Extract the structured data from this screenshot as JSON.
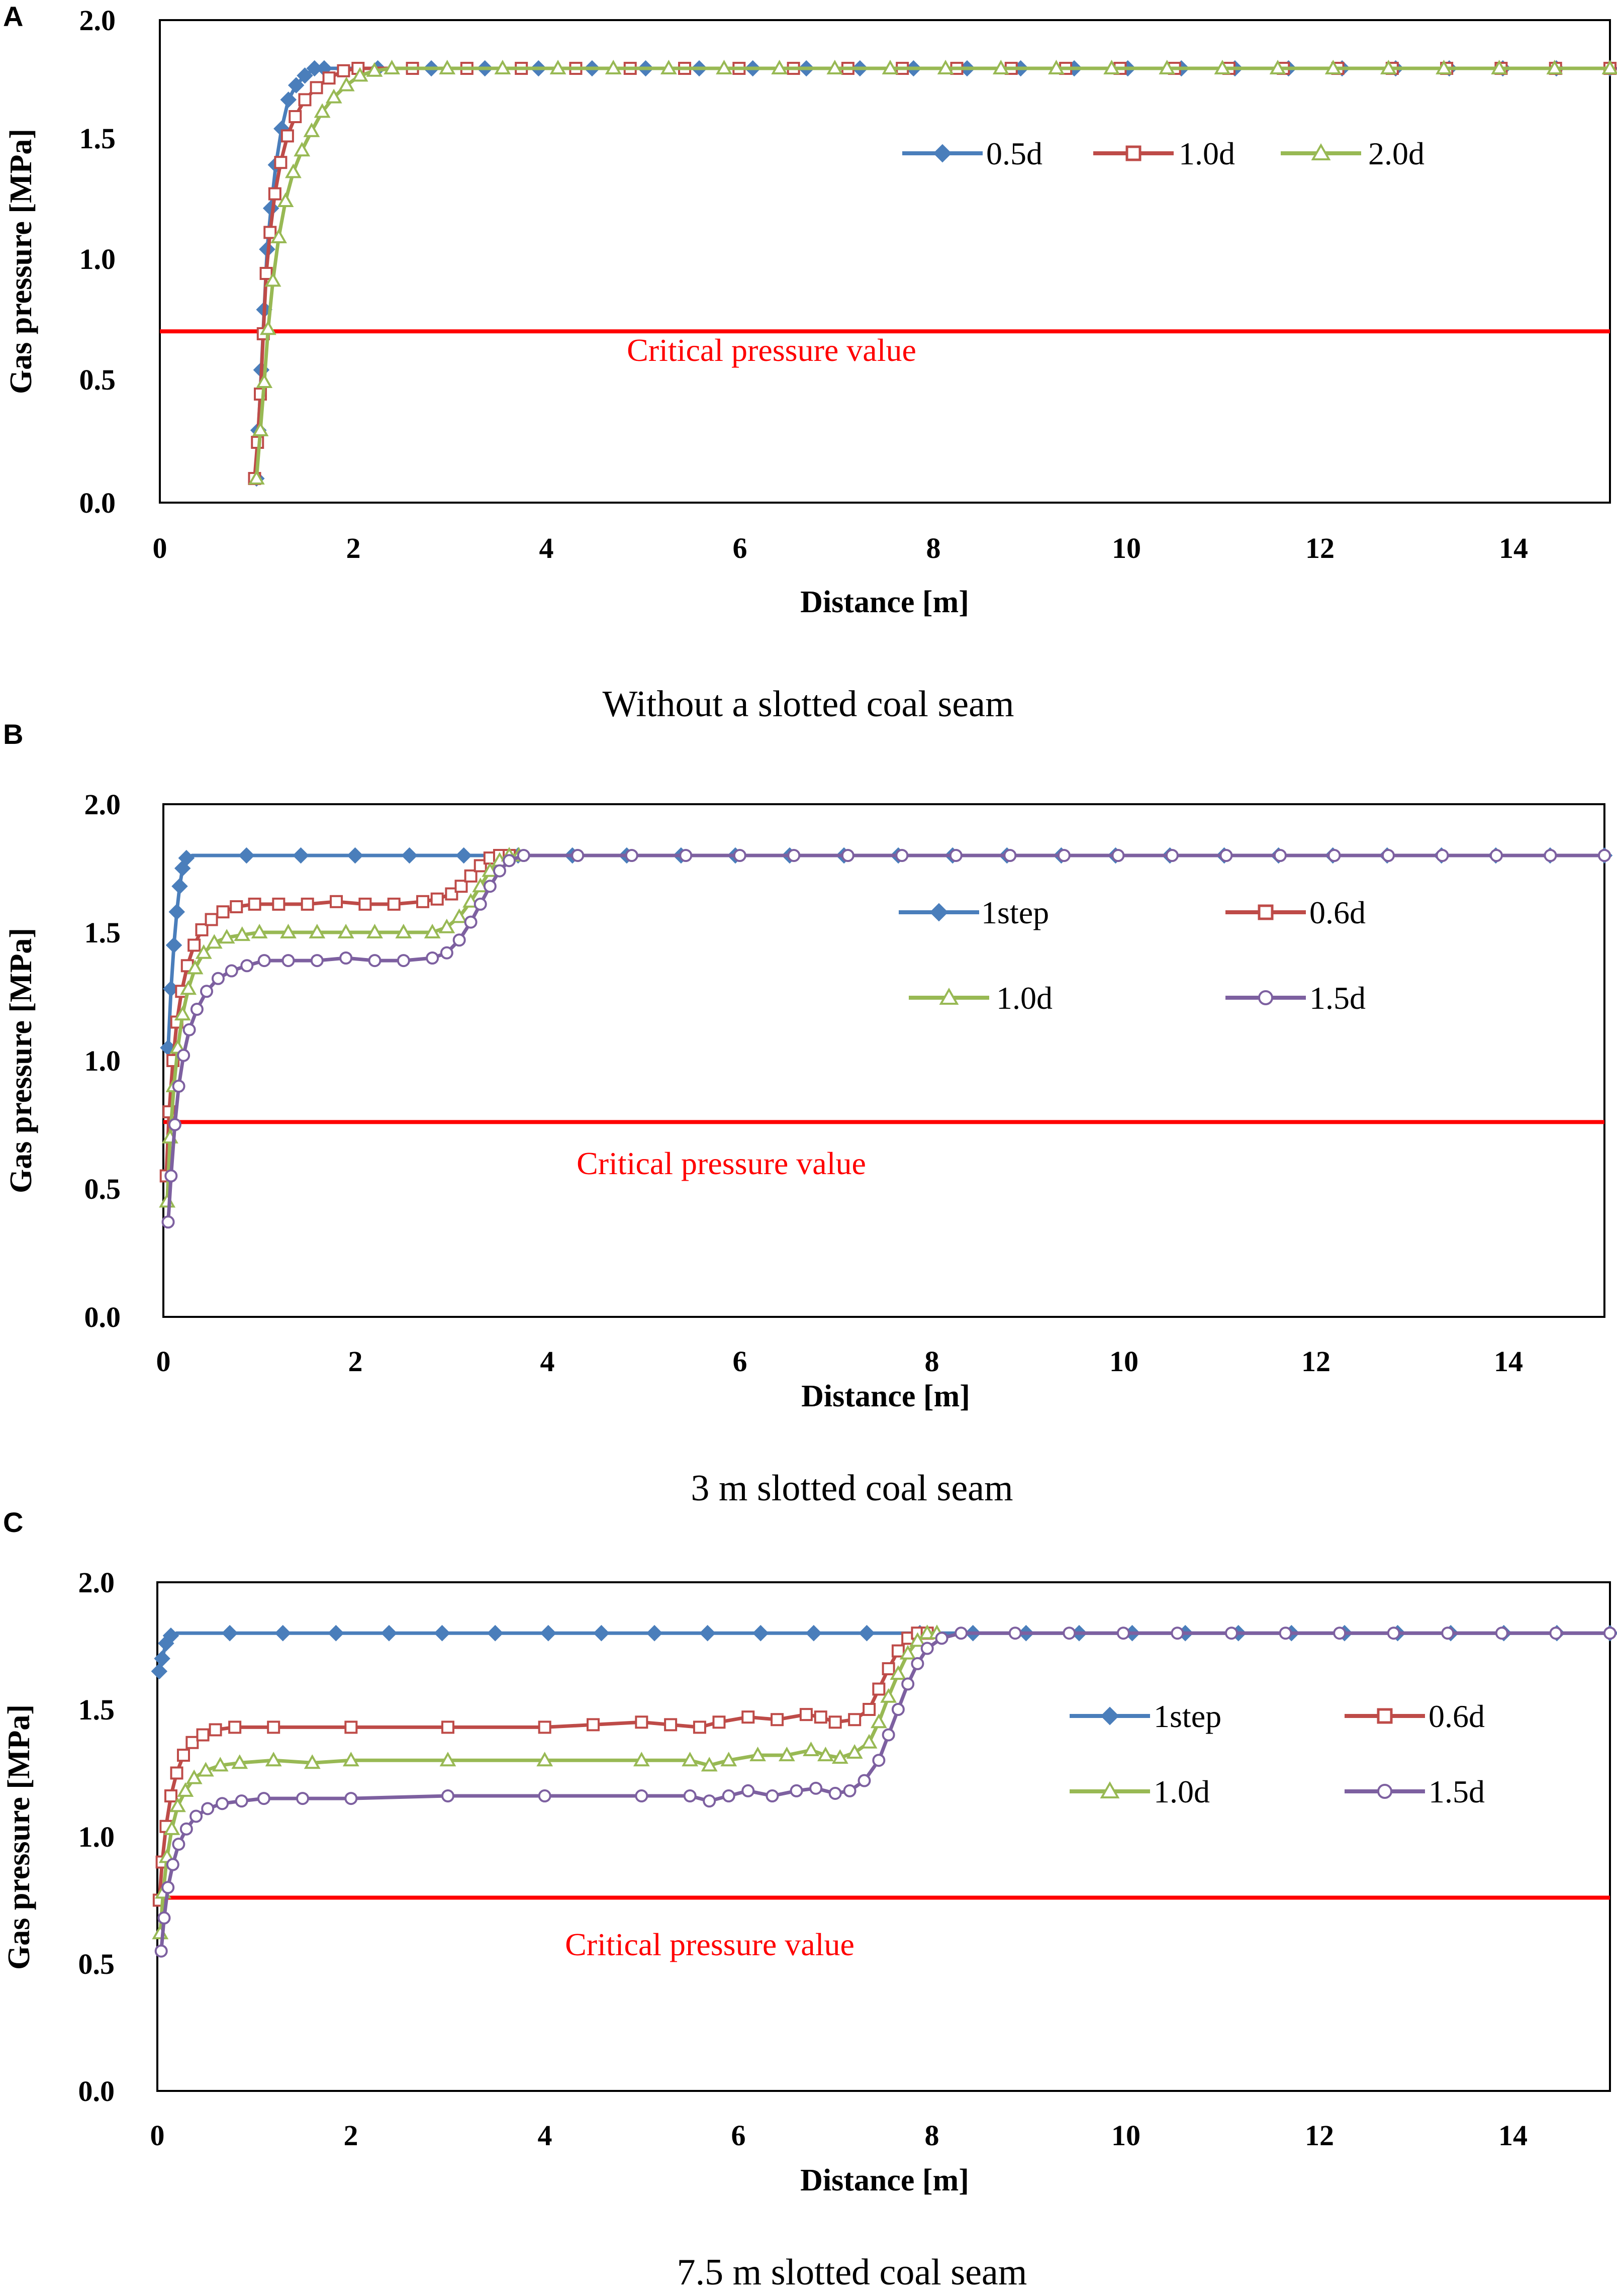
{
  "figure": {
    "panels": [
      "A",
      "B",
      "C"
    ],
    "captions": [
      "Without a slotted coal seam",
      "3 m slotted coal seam",
      "7.5 m slotted coal seam"
    ]
  },
  "colors": {
    "blue": "#4a7ebb",
    "red": "#be4b48",
    "green": "#98b954",
    "purple": "#7d60a0",
    "critical": "#ff0000"
  },
  "chart_data": [
    {
      "type": "line",
      "panel": "A",
      "caption": "Without a slotted coal seam",
      "xlabel": "Distance [m]",
      "ylabel": "Gas pressure  [MPa]",
      "xlim": [
        0,
        15
      ],
      "ylim": [
        0,
        2
      ],
      "xticks": [
        "0",
        "2",
        "4",
        "6",
        "8",
        "10",
        "12",
        "14"
      ],
      "yticks": [
        "0.0",
        "0.5",
        "1.0",
        "1.5",
        "2.0"
      ],
      "legend_position": "top-right",
      "legend_columns": 3,
      "reference_line": {
        "label": "Critical pressure value",
        "y": 0.71
      },
      "series": [
        {
          "name": "0.5d",
          "color": "#4a7ebb",
          "marker": "diamond",
          "x": [
            1.0,
            1.02,
            1.05,
            1.08,
            1.11,
            1.15,
            1.2,
            1.26,
            1.33,
            1.41,
            1.5,
            1.6,
            1.7,
            15
          ],
          "y": [
            0.1,
            0.3,
            0.55,
            0.8,
            1.05,
            1.22,
            1.4,
            1.55,
            1.67,
            1.73,
            1.77,
            1.8,
            1.8,
            1.8
          ]
        },
        {
          "name": "1.0d",
          "color": "#be4b48",
          "marker": "square",
          "x": [
            0.98,
            1.01,
            1.04,
            1.07,
            1.1,
            1.14,
            1.19,
            1.25,
            1.32,
            1.4,
            1.5,
            1.62,
            1.75,
            1.9,
            2.05,
            15
          ],
          "y": [
            0.1,
            0.25,
            0.45,
            0.7,
            0.95,
            1.12,
            1.28,
            1.41,
            1.52,
            1.6,
            1.67,
            1.72,
            1.76,
            1.79,
            1.8,
            1.8
          ]
        },
        {
          "name": "2.0d",
          "color": "#98b954",
          "marker": "triangle",
          "x": [
            1.0,
            1.04,
            1.08,
            1.12,
            1.17,
            1.23,
            1.3,
            1.38,
            1.47,
            1.57,
            1.68,
            1.8,
            1.93,
            2.07,
            2.22,
            2.4,
            15
          ],
          "y": [
            0.1,
            0.3,
            0.5,
            0.72,
            0.92,
            1.1,
            1.25,
            1.37,
            1.46,
            1.54,
            1.62,
            1.68,
            1.73,
            1.77,
            1.79,
            1.8,
            1.8
          ]
        }
      ]
    },
    {
      "type": "line",
      "panel": "B",
      "caption": "3 m slotted coal seam",
      "xlabel": "Distance [m]",
      "ylabel": "Gas pressure  [MPa]",
      "xlim": [
        0,
        15
      ],
      "ylim": [
        0,
        2
      ],
      "xticks": [
        "0",
        "2",
        "4",
        "6",
        "8",
        "10",
        "12",
        "14"
      ],
      "yticks": [
        "0.0",
        "0.5",
        "1.0",
        "1.5",
        "2.0"
      ],
      "legend_position": "top-right",
      "legend_columns": 2,
      "reference_line": {
        "label": "Critical pressure value",
        "y": 0.76
      },
      "series": [
        {
          "name": "1step",
          "color": "#4a7ebb",
          "marker": "diamond",
          "x": [
            0.05,
            0.08,
            0.11,
            0.14,
            0.17,
            0.2,
            0.24,
            0.3,
            15
          ],
          "y": [
            1.05,
            1.28,
            1.45,
            1.58,
            1.68,
            1.75,
            1.79,
            1.8,
            1.8
          ]
        },
        {
          "name": "0.6d",
          "color": "#be4b48",
          "marker": "square",
          "x": [
            0.03,
            0.06,
            0.1,
            0.14,
            0.19,
            0.25,
            0.32,
            0.4,
            0.5,
            0.62,
            0.76,
            0.95,
            1.2,
            1.5,
            1.8,
            2.1,
            2.4,
            2.7,
            2.85,
            3.0,
            3.1,
            3.2,
            3.3,
            3.4,
            3.5,
            3.6
          ],
          "y": [
            0.55,
            0.8,
            1.0,
            1.15,
            1.27,
            1.37,
            1.45,
            1.51,
            1.55,
            1.58,
            1.6,
            1.61,
            1.61,
            1.61,
            1.62,
            1.61,
            1.61,
            1.62,
            1.63,
            1.65,
            1.68,
            1.72,
            1.76,
            1.79,
            1.8,
            1.8
          ]
        },
        {
          "name": "1.0d",
          "color": "#98b954",
          "marker": "triangle",
          "x": [
            0.04,
            0.07,
            0.11,
            0.15,
            0.2,
            0.26,
            0.33,
            0.42,
            0.53,
            0.66,
            0.82,
            1.0,
            1.3,
            1.6,
            1.9,
            2.2,
            2.5,
            2.8,
            2.95,
            3.08,
            3.2,
            3.3,
            3.4,
            3.5,
            3.6,
            3.7
          ],
          "y": [
            0.45,
            0.7,
            0.9,
            1.05,
            1.18,
            1.28,
            1.36,
            1.42,
            1.46,
            1.48,
            1.49,
            1.5,
            1.5,
            1.5,
            1.5,
            1.5,
            1.5,
            1.5,
            1.52,
            1.56,
            1.62,
            1.68,
            1.74,
            1.78,
            1.8,
            1.8
          ]
        },
        {
          "name": "1.5d",
          "color": "#7d60a0",
          "marker": "circle",
          "x": [
            0.05,
            0.08,
            0.12,
            0.16,
            0.21,
            0.27,
            0.35,
            0.45,
            0.57,
            0.71,
            0.87,
            1.05,
            1.3,
            1.6,
            1.9,
            2.2,
            2.5,
            2.8,
            2.95,
            3.08,
            3.2,
            3.3,
            3.4,
            3.5,
            3.6,
            3.75,
            15
          ],
          "y": [
            0.37,
            0.55,
            0.75,
            0.9,
            1.02,
            1.12,
            1.2,
            1.27,
            1.32,
            1.35,
            1.37,
            1.39,
            1.39,
            1.39,
            1.4,
            1.39,
            1.39,
            1.4,
            1.42,
            1.47,
            1.54,
            1.61,
            1.68,
            1.74,
            1.78,
            1.8,
            1.8
          ]
        }
      ]
    },
    {
      "type": "line",
      "panel": "C",
      "caption": "7.5 m slotted coal seam",
      "xlabel": "Distance [m]",
      "ylabel": "Gas pressure  [MPa]",
      "xlim": [
        0,
        15
      ],
      "ylim": [
        0,
        2
      ],
      "xticks": [
        "0",
        "2",
        "4",
        "6",
        "8",
        "10",
        "12",
        "14"
      ],
      "yticks": [
        "0.0",
        "0.5",
        "1.0",
        "1.5",
        "2.0"
      ],
      "legend_position": "top-right",
      "legend_columns": 2,
      "reference_line": {
        "label": "Critical pressure value",
        "y": 0.76
      },
      "series": [
        {
          "name": "1step",
          "color": "#4a7ebb",
          "marker": "diamond",
          "x": [
            0.02,
            0.05,
            0.09,
            0.14,
            0.2,
            15
          ],
          "y": [
            1.65,
            1.7,
            1.76,
            1.79,
            1.8,
            1.8
          ]
        },
        {
          "name": "0.6d",
          "color": "#be4b48",
          "marker": "square",
          "x": [
            0.02,
            0.05,
            0.09,
            0.14,
            0.2,
            0.27,
            0.36,
            0.47,
            0.6,
            0.8,
            1.2,
            2.0,
            3.0,
            4.0,
            4.5,
            5.0,
            5.3,
            5.6,
            5.8,
            6.1,
            6.4,
            6.7,
            6.85,
            7.0,
            7.2,
            7.35,
            7.45,
            7.55,
            7.65,
            7.75,
            7.85,
            7.95
          ],
          "y": [
            0.75,
            0.9,
            1.04,
            1.16,
            1.25,
            1.32,
            1.37,
            1.4,
            1.42,
            1.43,
            1.43,
            1.43,
            1.43,
            1.43,
            1.44,
            1.45,
            1.44,
            1.43,
            1.45,
            1.47,
            1.46,
            1.48,
            1.47,
            1.45,
            1.46,
            1.5,
            1.58,
            1.66,
            1.73,
            1.78,
            1.8,
            1.8
          ]
        },
        {
          "name": "1.0d",
          "color": "#98b954",
          "marker": "triangle",
          "x": [
            0.03,
            0.06,
            0.1,
            0.15,
            0.21,
            0.29,
            0.38,
            0.5,
            0.65,
            0.85,
            1.2,
            1.6,
            2.0,
            3.0,
            4.0,
            5.0,
            5.5,
            5.7,
            5.9,
            6.2,
            6.5,
            6.75,
            6.9,
            7.05,
            7.2,
            7.35,
            7.45,
            7.55,
            7.65,
            7.75,
            7.85,
            7.95,
            8.05
          ],
          "y": [
            0.62,
            0.78,
            0.92,
            1.03,
            1.12,
            1.18,
            1.23,
            1.26,
            1.28,
            1.29,
            1.3,
            1.29,
            1.3,
            1.3,
            1.3,
            1.3,
            1.3,
            1.28,
            1.3,
            1.32,
            1.32,
            1.34,
            1.32,
            1.31,
            1.33,
            1.37,
            1.45,
            1.55,
            1.64,
            1.72,
            1.77,
            1.8,
            1.8
          ]
        },
        {
          "name": "1.5d",
          "color": "#7d60a0",
          "marker": "circle",
          "x": [
            0.04,
            0.07,
            0.11,
            0.16,
            0.22,
            0.3,
            0.4,
            0.52,
            0.67,
            0.87,
            1.1,
            1.5,
            2.0,
            3.0,
            4.0,
            5.0,
            5.5,
            5.7,
            5.9,
            6.1,
            6.35,
            6.6,
            6.8,
            7.0,
            7.15,
            7.3,
            7.45,
            7.55,
            7.65,
            7.75,
            7.85,
            7.95,
            8.1,
            8.3,
            15
          ],
          "y": [
            0.55,
            0.68,
            0.8,
            0.89,
            0.97,
            1.03,
            1.08,
            1.11,
            1.13,
            1.14,
            1.15,
            1.15,
            1.15,
            1.16,
            1.16,
            1.16,
            1.16,
            1.14,
            1.16,
            1.18,
            1.16,
            1.18,
            1.19,
            1.17,
            1.18,
            1.22,
            1.3,
            1.4,
            1.5,
            1.6,
            1.68,
            1.74,
            1.78,
            1.8,
            1.8
          ]
        }
      ]
    }
  ]
}
